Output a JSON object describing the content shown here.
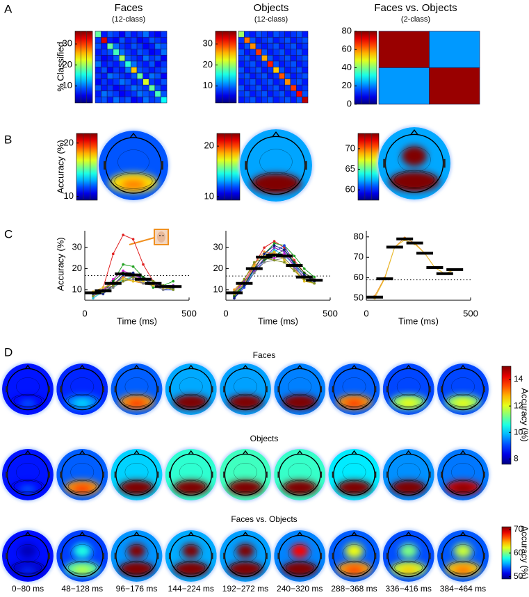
{
  "panel_labels": [
    "A",
    "B",
    "C",
    "D"
  ],
  "chart_data": [
    {
      "type": "heatmap",
      "title": "Faces",
      "subtitle": "(12-class)",
      "ylabel": "% Classified",
      "values": [
        [
          18,
          7,
          9,
          8,
          6,
          9,
          7,
          8,
          10,
          7,
          6,
          8
        ],
        [
          8,
          33,
          7,
          6,
          9,
          7,
          8,
          6,
          7,
          9,
          8,
          7
        ],
        [
          9,
          7,
          18,
          10,
          8,
          7,
          9,
          8,
          6,
          7,
          10,
          9
        ],
        [
          7,
          8,
          9,
          17,
          10,
          8,
          7,
          9,
          8,
          6,
          7,
          10
        ],
        [
          8,
          6,
          7,
          9,
          20,
          9,
          8,
          7,
          10,
          8,
          9,
          6
        ],
        [
          10,
          7,
          8,
          7,
          9,
          16,
          10,
          8,
          7,
          9,
          6,
          8
        ],
        [
          7,
          9,
          6,
          8,
          7,
          10,
          25,
          9,
          8,
          7,
          8,
          9
        ],
        [
          8,
          7,
          10,
          9,
          8,
          7,
          9,
          18,
          7,
          10,
          9,
          6
        ],
        [
          6,
          8,
          7,
          8,
          10,
          9,
          7,
          8,
          22,
          8,
          7,
          9
        ],
        [
          9,
          7,
          8,
          6,
          7,
          8,
          10,
          9,
          8,
          18,
          9,
          7
        ],
        [
          7,
          10,
          9,
          8,
          6,
          7,
          8,
          10,
          9,
          8,
          17,
          9
        ],
        [
          8,
          9,
          7,
          10,
          8,
          9,
          6,
          7,
          10,
          8,
          9,
          15
        ]
      ],
      "colorbar": {
        "lim": [
          2,
          36
        ],
        "ticks": [
          10,
          20,
          30
        ]
      }
    },
    {
      "type": "heatmap",
      "title": "Objects",
      "subtitle": "(12-class)",
      "values": [
        [
          20,
          8,
          7,
          9,
          8,
          7,
          9,
          8,
          7,
          8,
          9,
          7
        ],
        [
          8,
          28,
          9,
          7,
          8,
          9,
          7,
          8,
          9,
          7,
          8,
          9
        ],
        [
          7,
          9,
          27,
          8,
          7,
          8,
          9,
          7,
          8,
          9,
          7,
          8
        ],
        [
          9,
          7,
          8,
          30,
          9,
          7,
          8,
          9,
          7,
          8,
          9,
          7
        ],
        [
          8,
          9,
          7,
          8,
          26,
          9,
          7,
          8,
          9,
          7,
          8,
          9
        ],
        [
          7,
          8,
          9,
          7,
          8,
          31,
          9,
          7,
          8,
          9,
          7,
          8
        ],
        [
          9,
          7,
          8,
          9,
          7,
          8,
          25,
          9,
          7,
          8,
          9,
          7
        ],
        [
          8,
          9,
          7,
          8,
          9,
          7,
          8,
          29,
          9,
          7,
          8,
          9
        ],
        [
          7,
          8,
          9,
          7,
          8,
          9,
          7,
          8,
          27,
          8,
          9,
          7
        ],
        [
          9,
          7,
          8,
          9,
          7,
          8,
          9,
          7,
          8,
          30,
          7,
          8
        ],
        [
          8,
          9,
          7,
          8,
          9,
          7,
          8,
          9,
          7,
          8,
          32,
          9
        ],
        [
          7,
          8,
          9,
          7,
          8,
          9,
          7,
          8,
          9,
          7,
          9,
          34
        ]
      ],
      "colorbar": {
        "lim": [
          2,
          36
        ],
        "ticks": [
          10,
          20,
          30
        ]
      }
    },
    {
      "type": "heatmap",
      "title": "Faces vs. Objects",
      "subtitle": "(2-class)",
      "values": [
        [
          78,
          22
        ],
        [
          22,
          78
        ]
      ],
      "colorbar": {
        "lim": [
          0,
          80
        ],
        "ticks": [
          0,
          20,
          40,
          60,
          80
        ]
      }
    },
    {
      "type": "topomap",
      "ylabel": "Accuracy (%)",
      "colorbar": {
        "lim": [
          9.3,
          21.8
        ],
        "ticks": [
          10,
          20
        ]
      }
    },
    {
      "type": "topomap",
      "colorbar": {
        "lim": [
          9.3,
          22.5
        ],
        "ticks": [
          10,
          20
        ]
      }
    },
    {
      "type": "topomap",
      "colorbar": {
        "lim": [
          57.5,
          73.7
        ],
        "ticks": [
          60,
          65,
          70
        ]
      }
    },
    {
      "type": "line",
      "ylabel": "Accuracy (%)",
      "xlabel": "Time (ms)",
      "windows": [
        [
          0,
          80
        ],
        [
          48,
          128
        ],
        [
          96,
          176
        ],
        [
          144,
          224
        ],
        [
          192,
          272
        ],
        [
          240,
          320
        ],
        [
          288,
          368
        ],
        [
          336,
          416
        ],
        [
          384,
          464
        ]
      ],
      "series": [
        {
          "color": "#e02020",
          "values": [
            9,
            11,
            27,
            36,
            34,
            22,
            14,
            12,
            11
          ]
        },
        {
          "color": "#20a020",
          "values": [
            8,
            10,
            14,
            22,
            21,
            16,
            11,
            12,
            14
          ]
        },
        {
          "color": "#2040e0",
          "values": [
            7,
            9,
            12,
            16,
            18,
            14,
            12,
            10,
            10
          ]
        },
        {
          "color": "#d020d0",
          "values": [
            8,
            10,
            15,
            19,
            17,
            15,
            13,
            11,
            12
          ]
        },
        {
          "color": "#20c0e0",
          "values": [
            6,
            9,
            11,
            15,
            16,
            14,
            12,
            11,
            10
          ]
        },
        {
          "color": "#f09020",
          "values": [
            9,
            10,
            13,
            16,
            14,
            13,
            12,
            11,
            12
          ]
        },
        {
          "color": "#106010",
          "values": [
            8,
            9,
            14,
            18,
            17,
            16,
            14,
            12,
            11
          ]
        },
        {
          "color": "#8030c0",
          "values": [
            7,
            10,
            12,
            17,
            16,
            13,
            12,
            11,
            12
          ]
        },
        {
          "color": "#808080",
          "values": [
            8,
            9,
            11,
            14,
            15,
            13,
            12,
            10,
            11
          ]
        },
        {
          "color": "#e0c020",
          "values": [
            9,
            11,
            13,
            15,
            14,
            14,
            12,
            11,
            10
          ]
        },
        {
          "color": "#102080",
          "values": [
            8,
            8,
            12,
            17,
            18,
            15,
            13,
            12,
            11
          ]
        },
        {
          "color": "#809020",
          "values": [
            7,
            9,
            12,
            14,
            16,
            15,
            14,
            12,
            10
          ]
        }
      ],
      "mean": [
        8.5,
        9.5,
        13,
        17.5,
        17,
        15,
        13,
        11.5,
        11.5
      ],
      "threshold": 16.7,
      "xlim": [
        0,
        500
      ],
      "xticks": [
        0,
        500
      ],
      "ylim": [
        5,
        38
      ],
      "yticks": [
        10,
        20,
        30
      ]
    },
    {
      "type": "line",
      "xlabel": "Time (ms)",
      "windows": [
        [
          0,
          80
        ],
        [
          48,
          128
        ],
        [
          96,
          176
        ],
        [
          144,
          224
        ],
        [
          192,
          272
        ],
        [
          240,
          320
        ],
        [
          288,
          368
        ],
        [
          336,
          416
        ],
        [
          384,
          464
        ]
      ],
      "series": [
        {
          "color": "#e02020",
          "values": [
            8,
            13,
            22,
            30,
            33,
            30,
            24,
            18,
            15
          ]
        },
        {
          "color": "#20a020",
          "values": [
            7,
            12,
            20,
            27,
            32,
            31,
            26,
            20,
            16
          ]
        },
        {
          "color": "#2040e0",
          "values": [
            6,
            11,
            18,
            24,
            28,
            31,
            22,
            17,
            14
          ]
        },
        {
          "color": "#d020d0",
          "values": [
            9,
            14,
            21,
            26,
            25,
            27,
            21,
            16,
            15
          ]
        },
        {
          "color": "#20c0e0",
          "values": [
            8,
            12,
            19,
            25,
            29,
            26,
            22,
            15,
            13
          ]
        },
        {
          "color": "#f09020",
          "values": [
            10,
            15,
            22,
            28,
            27,
            25,
            20,
            14,
            13
          ]
        },
        {
          "color": "#106010",
          "values": [
            7,
            13,
            20,
            24,
            26,
            29,
            23,
            18,
            15
          ]
        },
        {
          "color": "#8030c0",
          "values": [
            8,
            14,
            19,
            25,
            30,
            28,
            21,
            15,
            14
          ]
        },
        {
          "color": "#808080",
          "values": [
            9,
            12,
            18,
            23,
            24,
            25,
            20,
            16,
            15
          ]
        },
        {
          "color": "#e0c020",
          "values": [
            8,
            13,
            21,
            26,
            28,
            24,
            19,
            14,
            13
          ]
        },
        {
          "color": "#102080",
          "values": [
            6,
            12,
            20,
            27,
            31,
            29,
            22,
            17,
            14
          ]
        },
        {
          "color": "#809020",
          "values": [
            9,
            15,
            23,
            25,
            24,
            23,
            19,
            15,
            13
          ]
        }
      ],
      "mean": [
        8.5,
        13,
        20,
        25.5,
        26.5,
        26,
        21.5,
        16,
        14.5
      ],
      "threshold": 16.5,
      "xlim": [
        0,
        500
      ],
      "xticks": [
        0,
        500
      ],
      "ylim": [
        5,
        38
      ],
      "yticks": [
        10,
        20,
        30
      ]
    },
    {
      "type": "line",
      "xlabel": "Time (ms)",
      "windows": [
        [
          0,
          80
        ],
        [
          48,
          128
        ],
        [
          96,
          176
        ],
        [
          144,
          224
        ],
        [
          192,
          272
        ],
        [
          240,
          320
        ],
        [
          288,
          368
        ],
        [
          336,
          416
        ],
        [
          384,
          464
        ]
      ],
      "series": [
        {
          "color": "#f09020",
          "values": [
            51,
            60,
            75,
            79.5,
            77,
            72,
            65,
            62,
            64
          ]
        },
        {
          "color": "#e8c030",
          "values": [
            50,
            59.5,
            75,
            78.5,
            76.5,
            72,
            65,
            62,
            64
          ]
        }
      ],
      "mean": [
        50.5,
        59.5,
        75,
        79,
        77,
        72,
        65,
        62,
        64
      ],
      "threshold": 59,
      "xlim": [
        0,
        500
      ],
      "xticks": [
        0,
        500
      ],
      "ylim": [
        49,
        83
      ],
      "yticks": [
        50,
        60,
        70,
        80
      ]
    },
    {
      "type": "topomap-grid",
      "rows": [
        "Faces",
        "Objects",
        "Faces vs. Objects"
      ],
      "time_labels": [
        "0−80 ms",
        "48−128 ms",
        "96−176 ms",
        "144−224 ms",
        "192−272 ms",
        "240−320 ms",
        "288−368 ms",
        "336−416 ms",
        "384−464 ms"
      ],
      "colorbars": [
        {
          "label": "Accuracy (%)",
          "lim": [
            7.6,
            15
          ],
          "ticks": [
            8,
            10,
            12,
            14
          ]
        },
        {
          "label": "Accuracy (%)",
          "lim": [
            49,
            71.2
          ],
          "ticks": [
            50,
            60,
            70
          ]
        }
      ]
    }
  ]
}
